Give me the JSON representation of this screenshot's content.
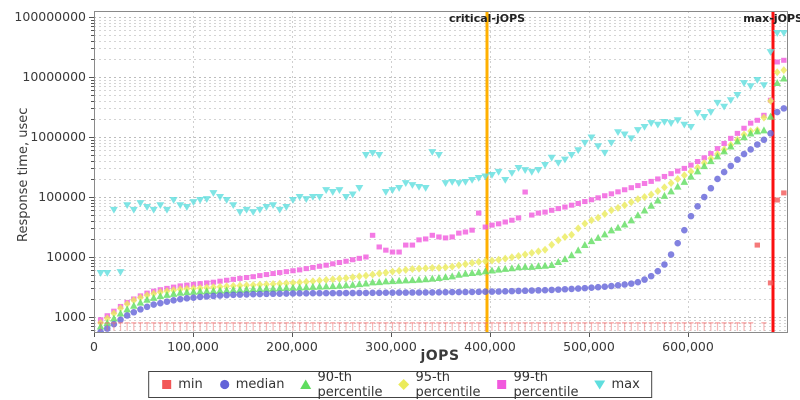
{
  "y_axis": {
    "label": "Response time, usec",
    "ticks": [
      {
        "value": 1000,
        "label": "1000"
      },
      {
        "value": 10000,
        "label": "10000"
      },
      {
        "value": 100000,
        "label": "100000"
      },
      {
        "value": 1000000,
        "label": "1000000"
      },
      {
        "value": 10000000,
        "label": "10000000"
      },
      {
        "value": 100000000,
        "label": "100000000"
      }
    ]
  },
  "x_axis": {
    "label": "jOPS",
    "ticks": [
      {
        "value": 0,
        "label": "0"
      },
      {
        "value": 100000,
        "label": "100,000"
      },
      {
        "value": 200000,
        "label": "200,000"
      },
      {
        "value": 300000,
        "label": "300,000"
      },
      {
        "value": 400000,
        "label": "400,000"
      },
      {
        "value": 500000,
        "label": "500,000"
      },
      {
        "value": 600000,
        "label": "600,000"
      }
    ]
  },
  "annotations": {
    "critical": {
      "label": "critical-jOPS",
      "jops": 397000,
      "color": "#ffb000"
    },
    "max": {
      "label": "max-jOPS",
      "jops": 686000,
      "color": "#fb1010"
    }
  },
  "legend": {
    "items": [
      {
        "label": "min",
        "marker": "square",
        "color": "#f25757"
      },
      {
        "label": "median",
        "marker": "circle",
        "color": "#6363d8"
      },
      {
        "label": "90-th percentile",
        "marker": "triangle-up",
        "color": "#5fdd5f"
      },
      {
        "label": "95-th percentile",
        "marker": "diamond",
        "color": "#ebeb5a"
      },
      {
        "label": "99-th percentile",
        "marker": "square",
        "color": "#f159dd"
      },
      {
        "label": "max",
        "marker": "triangle-down",
        "color": "#5fdede"
      }
    ]
  },
  "chart_data": {
    "type": "scatter",
    "title": "",
    "xlabel": "jOPS",
    "ylabel": "Response time, usec",
    "x_range": [
      0,
      700000
    ],
    "y_range": [
      562,
      126000000
    ],
    "y_scale": "log",
    "grid": "dashed",
    "legend_position": "bottom",
    "x": [
      6700,
      13400,
      20100,
      26800,
      33500,
      40200,
      46900,
      53600,
      60300,
      67000,
      73700,
      80400,
      87100,
      93800,
      100500,
      107200,
      113900,
      120600,
      127300,
      134000,
      140700,
      147400,
      154100,
      160800,
      167500,
      174200,
      180900,
      187600,
      194300,
      201000,
      207700,
      214400,
      221100,
      227800,
      234500,
      241200,
      247900,
      254600,
      261300,
      268000,
      274700,
      281400,
      288100,
      294800,
      301500,
      308200,
      314900,
      321600,
      328300,
      335000,
      341700,
      348400,
      355100,
      361800,
      368500,
      375200,
      381900,
      388600,
      395300,
      402000,
      408700,
      415400,
      422100,
      428800,
      435500,
      442200,
      448900,
      455600,
      462300,
      469000,
      475700,
      482400,
      489100,
      495800,
      502500,
      509200,
      515900,
      522600,
      529300,
      536000,
      542700,
      549400,
      556100,
      562800,
      569500,
      576200,
      582900,
      589600,
      596300,
      603000,
      609700,
      616400,
      623100,
      629800,
      636500,
      643200,
      649900,
      656600,
      663300,
      670000,
      676700,
      683400,
      690100,
      696800
    ],
    "series": [
      {
        "name": "min",
        "marker": "square",
        "color": "#f25757",
        "values": [
          800,
          800,
          800,
          800,
          800,
          800,
          800,
          800,
          800,
          800,
          800,
          800,
          800,
          800,
          800,
          800,
          800,
          800,
          800,
          800,
          800,
          800,
          800,
          800,
          800,
          800,
          800,
          800,
          800,
          800,
          800,
          800,
          800,
          800,
          800,
          800,
          800,
          800,
          800,
          800,
          800,
          800,
          800,
          800,
          800,
          800,
          800,
          800,
          800,
          800,
          800,
          800,
          800,
          800,
          800,
          800,
          800,
          800,
          800,
          800,
          800,
          800,
          800,
          800,
          800,
          800,
          800,
          800,
          800,
          800,
          800,
          800,
          800,
          800,
          800,
          800,
          800,
          800,
          800,
          800,
          800,
          800,
          800,
          800,
          800,
          800,
          800,
          800,
          800,
          800,
          800,
          800,
          800,
          800,
          800,
          800,
          800,
          800,
          800,
          15800,
          800,
          3700,
          89000,
          117000
        ]
      },
      {
        "name": "median",
        "marker": "circle",
        "color": "#6363d8",
        "values": [
          560,
          640,
          760,
          900,
          1060,
          1200,
          1340,
          1480,
          1610,
          1700,
          1800,
          1900,
          1980,
          2050,
          2100,
          2160,
          2200,
          2240,
          2280,
          2310,
          2340,
          2360,
          2380,
          2400,
          2410,
          2430,
          2440,
          2450,
          2460,
          2470,
          2480,
          2480,
          2490,
          2490,
          2500,
          2500,
          2500,
          2510,
          2510,
          2520,
          2520,
          2530,
          2530,
          2540,
          2540,
          2550,
          2550,
          2560,
          2560,
          2570,
          2570,
          2580,
          2590,
          2600,
          2600,
          2610,
          2620,
          2630,
          2640,
          2650,
          2660,
          2680,
          2700,
          2720,
          2740,
          2760,
          2780,
          2800,
          2830,
          2860,
          2900,
          2940,
          2980,
          3030,
          3080,
          3140,
          3200,
          3280,
          3370,
          3480,
          3600,
          3800,
          4200,
          4800,
          5800,
          7500,
          11000,
          17000,
          28000,
          48000,
          70000,
          100000,
          140000,
          200000,
          260000,
          330000,
          420000,
          520000,
          620000,
          750000,
          900000,
          1150000,
          2600000,
          3000000
        ]
      },
      {
        "name": "90-th percentile",
        "marker": "triangle-up",
        "color": "#5fdd5f",
        "values": [
          700,
          800,
          950,
          1150,
          1350,
          1550,
          1750,
          1950,
          2100,
          2250,
          2350,
          2450,
          2550,
          2600,
          2650,
          2700,
          2720,
          2750,
          2780,
          2800,
          2850,
          2870,
          2900,
          2950,
          2970,
          3000,
          3000,
          3050,
          3080,
          3100,
          3130,
          3160,
          3200,
          3230,
          3260,
          3300,
          3350,
          3400,
          3450,
          3550,
          3650,
          3800,
          3850,
          3950,
          4000,
          4050,
          4100,
          4150,
          4200,
          4300,
          4400,
          4500,
          4650,
          4800,
          5100,
          5300,
          5450,
          5600,
          5800,
          6000,
          6200,
          6400,
          6550,
          6800,
          6900,
          6900,
          7100,
          7200,
          7400,
          8300,
          9300,
          10800,
          13000,
          16000,
          18500,
          21000,
          24000,
          28000,
          31000,
          35000,
          41000,
          50000,
          60000,
          72000,
          88000,
          105000,
          125000,
          150000,
          180000,
          220000,
          270000,
          330000,
          400000,
          480000,
          580000,
          700000,
          850000,
          1000000,
          1150000,
          1250000,
          1300000,
          2200000,
          8000000,
          9500000
        ]
      },
      {
        "name": "95-th percentile",
        "marker": "diamond",
        "color": "#ebeb5a",
        "values": [
          800,
          950,
          1150,
          1400,
          1650,
          1900,
          2100,
          2300,
          2450,
          2600,
          2700,
          2800,
          2900,
          2950,
          3000,
          3050,
          3100,
          3150,
          3200,
          3250,
          3300,
          3330,
          3380,
          3420,
          3460,
          3500,
          3550,
          3600,
          3650,
          3700,
          3780,
          3850,
          3950,
          4050,
          4150,
          4250,
          4350,
          4450,
          4600,
          4750,
          4900,
          5100,
          5300,
          5500,
          5700,
          5900,
          6100,
          6300,
          6400,
          6500,
          6600,
          6600,
          6700,
          6900,
          7300,
          7600,
          8000,
          8300,
          8500,
          8700,
          9000,
          9400,
          9900,
          10400,
          11000,
          11700,
          12400,
          13200,
          16000,
          19000,
          21500,
          23500,
          30000,
          36000,
          41000,
          45000,
          52000,
          60000,
          66000,
          73000,
          82000,
          92000,
          100000,
          110000,
          125000,
          145000,
          170000,
          200000,
          230000,
          265000,
          310000,
          370000,
          440000,
          520000,
          620000,
          740000,
          900000,
          1100000,
          1250000,
          1300000,
          2100000,
          4000000,
          12000000,
          13000000
        ]
      },
      {
        "name": "99-th percentile",
        "marker": "square",
        "color": "#f159dd",
        "values": [
          900,
          1050,
          1250,
          1500,
          1750,
          2000,
          2250,
          2500,
          2700,
          2850,
          3000,
          3150,
          3300,
          3400,
          3500,
          3600,
          3700,
          3800,
          3950,
          4100,
          4250,
          4400,
          4550,
          4700,
          4900,
          5100,
          5300,
          5500,
          5700,
          5900,
          6100,
          6400,
          6700,
          7000,
          7300,
          7700,
          8100,
          8500,
          9000,
          9500,
          10000,
          23000,
          14700,
          13000,
          12100,
          12100,
          15800,
          15800,
          19300,
          20000,
          23000,
          21600,
          20800,
          21600,
          25000,
          26100,
          28000,
          54000,
          31600,
          34000,
          35700,
          38300,
          41000,
          44800,
          121000,
          50000,
          54000,
          56000,
          60000,
          64000,
          68000,
          73000,
          78000,
          84000,
          90000,
          97000,
          105000,
          113000,
          122000,
          132000,
          143000,
          155000,
          168000,
          182000,
          200000,
          220000,
          245000,
          270000,
          300000,
          340000,
          390000,
          450000,
          530000,
          640000,
          780000,
          950000,
          1150000,
          1400000,
          1700000,
          1900000,
          2300000,
          4100000,
          17800000,
          19000000
        ]
      },
      {
        "name": "max",
        "marker": "triangle-down",
        "color": "#5fdede",
        "values": [
          5400,
          5400,
          61000,
          5600,
          73000,
          61000,
          79000,
          68000,
          61000,
          73000,
          61000,
          89000,
          73000,
          68000,
          82000,
          89000,
          92000,
          116000,
          100000,
          89000,
          73000,
          56000,
          61000,
          56000,
          61000,
          68000,
          73000,
          61000,
          68000,
          89000,
          100000,
          92000,
          100000,
          100000,
          130000,
          121000,
          130000,
          100000,
          110000,
          141000,
          500000,
          540000,
          500000,
          121000,
          130000,
          141000,
          170000,
          158000,
          147000,
          141000,
          560000,
          500000,
          170000,
          178000,
          170000,
          178000,
          192000,
          207000,
          220000,
          233000,
          262000,
          192000,
          250000,
          304000,
          280000,
          262000,
          282000,
          341000,
          450000,
          370000,
          420000,
          500000,
          600000,
          800000,
          980000,
          700000,
          545000,
          800000,
          1200000,
          1100000,
          950000,
          1300000,
          1470000,
          1700000,
          1600000,
          1780000,
          1700000,
          1900000,
          1600000,
          1470000,
          2500000,
          2150000,
          2600000,
          3700000,
          3200000,
          4100000,
          5000000,
          7900000,
          7000000,
          8900000,
          7300000,
          26000000,
          54000000,
          54000000
        ]
      }
    ]
  }
}
